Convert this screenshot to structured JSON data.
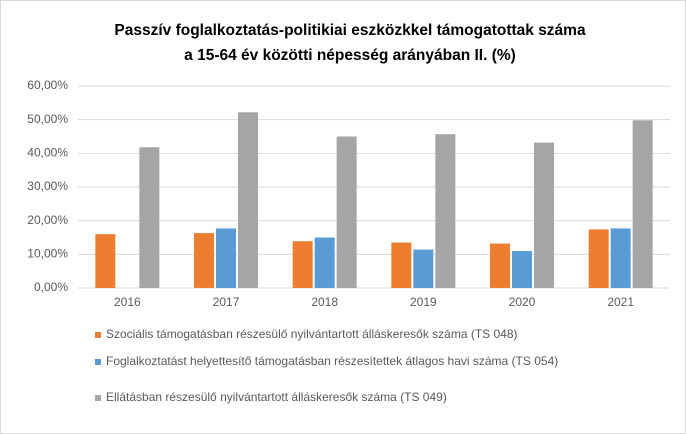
{
  "chart_data": {
    "type": "bar",
    "title": [
      "Passzív foglalkoztatás-politikiai eszközkkel támogatottak száma",
      "a 15-64 év közötti népesség  arányában II. (%)"
    ],
    "categories": [
      "2016",
      "2017",
      "2018",
      "2019",
      "2020",
      "2021"
    ],
    "series": [
      {
        "name": "Szociális támogatásban részesülő nyilvántartott álláskeresők száma (TS 048)",
        "color": "#ed7d31",
        "values": [
          16.0,
          16.3,
          13.9,
          13.5,
          13.2,
          17.4
        ]
      },
      {
        "name": "Foglalkoztatást helyettesítő támogatásban részesítettek átlagos havi száma (TS 054)",
        "color": "#5b9bd5",
        "values": [
          null,
          17.7,
          15.0,
          11.4,
          11.0,
          17.7
        ]
      },
      {
        "name": "Ellátásban részesülő nyilvántartott álláskeresők száma (TS 049)",
        "color": "#a5a5a5",
        "values": [
          41.8,
          52.2,
          45.0,
          45.7,
          43.2,
          49.8
        ]
      }
    ],
    "ylim": [
      0,
      60
    ],
    "yticks": [
      {
        "value": 0,
        "label": "0,00%"
      },
      {
        "value": 10,
        "label": "10,00%"
      },
      {
        "value": 20,
        "label": "20,00%"
      },
      {
        "value": 30,
        "label": "30,00%"
      },
      {
        "value": 40,
        "label": "40,00%"
      },
      {
        "value": 50,
        "label": "50,00%"
      },
      {
        "value": 60,
        "label": "60,00%"
      }
    ],
    "grid": true,
    "legend": "bottom"
  }
}
